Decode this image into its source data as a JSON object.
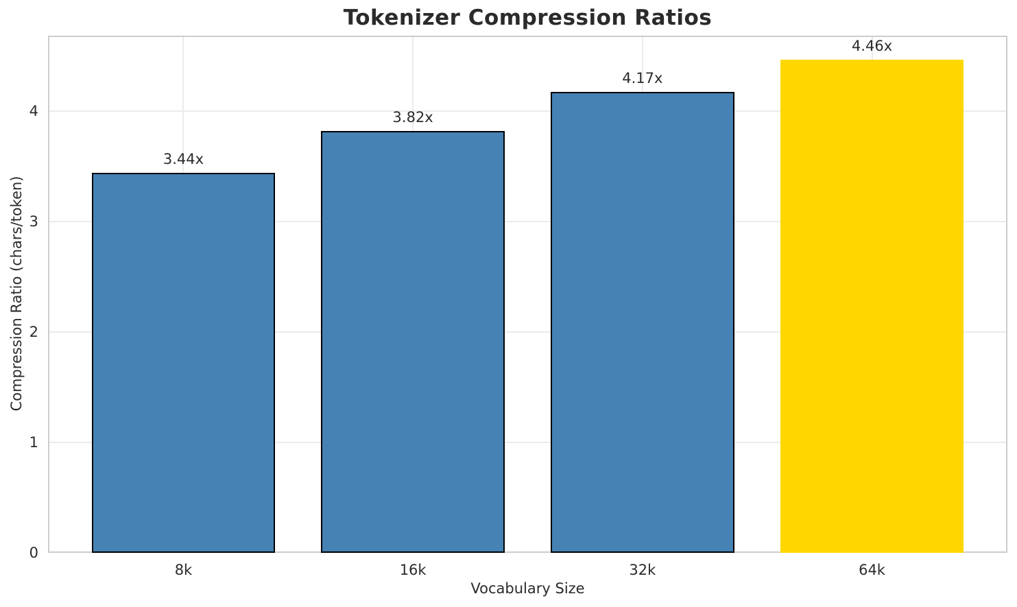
{
  "chart_data": {
    "type": "bar",
    "title": "Tokenizer Compression Ratios",
    "xlabel": "Vocabulary Size",
    "ylabel": "Compression Ratio (chars/token)",
    "categories": [
      "8k",
      "16k",
      "32k",
      "64k"
    ],
    "values": [
      3.44,
      3.82,
      4.17,
      4.46
    ],
    "bar_labels": [
      "3.44x",
      "3.82x",
      "4.17x",
      "4.46x"
    ],
    "yticks": [
      0,
      1,
      2,
      3,
      4
    ],
    "ylim": [
      0,
      4.68
    ],
    "grid": true,
    "legend": "none",
    "highlight_index": 3,
    "colors": {
      "bar": "#4682B4",
      "highlight": "#FFD700",
      "edge": "#000000",
      "grid": "#ebebeb",
      "spine": "#cccccc",
      "text": "#2b2b2b"
    }
  }
}
